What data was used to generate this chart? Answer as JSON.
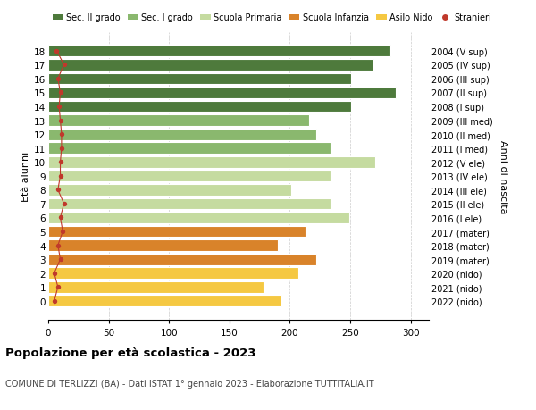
{
  "ages": [
    0,
    1,
    2,
    3,
    4,
    5,
    6,
    7,
    8,
    9,
    10,
    11,
    12,
    13,
    14,
    15,
    16,
    17,
    18
  ],
  "values": [
    193,
    178,
    207,
    222,
    190,
    213,
    249,
    234,
    201,
    234,
    271,
    234,
    222,
    216,
    251,
    288,
    251,
    269,
    283
  ],
  "stranieri": [
    5,
    8,
    5,
    10,
    8,
    12,
    10,
    13,
    8,
    10,
    10,
    11,
    11,
    10,
    9,
    10,
    8,
    13,
    7
  ],
  "right_labels": [
    "2022 (nido)",
    "2021 (nido)",
    "2020 (nido)",
    "2019 (mater)",
    "2018 (mater)",
    "2017 (mater)",
    "2016 (I ele)",
    "2015 (II ele)",
    "2014 (III ele)",
    "2013 (IV ele)",
    "2012 (V ele)",
    "2011 (I med)",
    "2010 (II med)",
    "2009 (III med)",
    "2008 (I sup)",
    "2007 (II sup)",
    "2006 (III sup)",
    "2005 (IV sup)",
    "2004 (V sup)"
  ],
  "bar_colors": [
    "#f5c842",
    "#f5c842",
    "#f5c842",
    "#d9832a",
    "#d9832a",
    "#d9832a",
    "#c5dba0",
    "#c5dba0",
    "#c5dba0",
    "#c5dba0",
    "#c5dba0",
    "#8ab86e",
    "#8ab86e",
    "#8ab86e",
    "#4e7a3c",
    "#4e7a3c",
    "#4e7a3c",
    "#4e7a3c",
    "#4e7a3c"
  ],
  "legend_labels": [
    "Sec. II grado",
    "Sec. I grado",
    "Scuola Primaria",
    "Scuola Infanzia",
    "Asilo Nido",
    "Stranieri"
  ],
  "legend_colors": [
    "#4e7a3c",
    "#8ab86e",
    "#c5dba0",
    "#d9832a",
    "#f5c842",
    "#c0392b"
  ],
  "stranieri_color": "#c0392b",
  "stranieri_line_color": "#c0392b",
  "ylabel": "Età alunni",
  "right_ylabel": "Anni di nascita",
  "title": "Popolazione per età scolastica - 2023",
  "subtitle": "COMUNE DI TERLIZZI (BA) - Dati ISTAT 1° gennaio 2023 - Elaborazione TUTTITALIA.IT",
  "xlim": [
    0,
    315
  ],
  "xticks": [
    0,
    50,
    100,
    150,
    200,
    250,
    300
  ],
  "background_color": "#ffffff",
  "grid_color": "#cccccc"
}
